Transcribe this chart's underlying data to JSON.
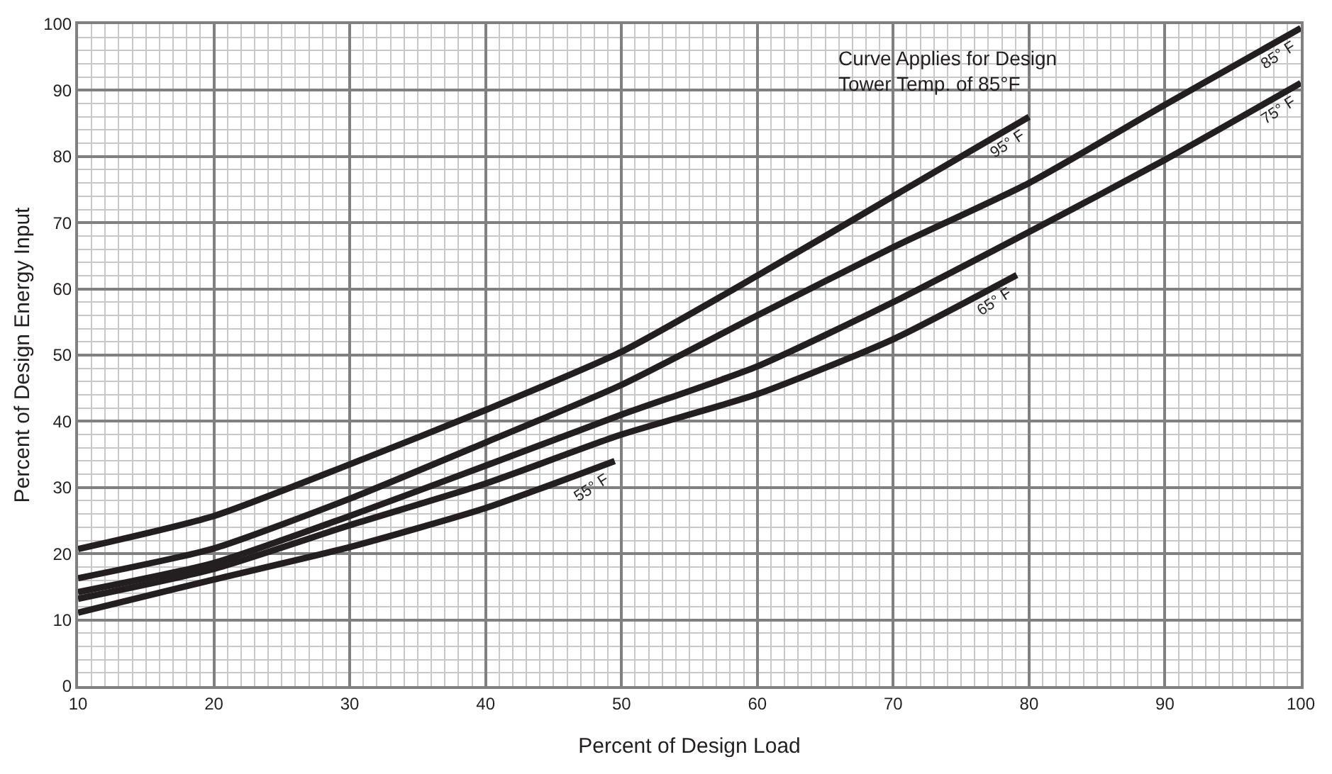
{
  "chart_data": {
    "type": "line",
    "xlabel": "Percent of Design Load",
    "ylabel": "Percent of Design Energy Input",
    "annotations": [
      "Curve Applies for Design\nTower Temp. of 85°F"
    ],
    "xlim": [
      10,
      100
    ],
    "xticks": [
      10,
      20,
      30,
      40,
      50,
      60,
      70,
      80,
      90,
      100
    ],
    "ylim": [
      0,
      100
    ],
    "yticks": [
      0,
      10,
      20,
      30,
      40,
      50,
      60,
      70,
      80,
      90,
      100
    ],
    "grid": true,
    "legend": false,
    "marker": "none",
    "line_style": "solid",
    "series": [
      {
        "name": "95° F",
        "color": "#231f20",
        "x": [
          10,
          20,
          30,
          40,
          50,
          60,
          70,
          80
        ],
        "values": [
          20.7,
          25.7,
          33.5,
          41.7,
          50.5,
          62.0,
          74.0,
          86.0
        ]
      },
      {
        "name": "85° F",
        "color": "#231f20",
        "x": [
          10,
          20,
          30,
          40,
          50,
          60,
          70,
          80,
          90,
          100
        ],
        "values": [
          16.3,
          20.8,
          28.3,
          36.8,
          45.5,
          56.0,
          66.3,
          76.0,
          87.8,
          99.4
        ]
      },
      {
        "name": "75° F",
        "color": "#231f20",
        "x": [
          10,
          20,
          30,
          40,
          50,
          60,
          70,
          80,
          90,
          100
        ],
        "values": [
          14.2,
          18.6,
          25.7,
          33.3,
          41.0,
          48.3,
          58.0,
          68.6,
          79.5,
          91.1
        ]
      },
      {
        "name": "65° F",
        "color": "#231f20",
        "x": [
          10,
          20,
          30,
          40,
          50,
          60,
          70,
          79.1
        ],
        "values": [
          13.2,
          17.7,
          24.3,
          30.6,
          38.0,
          44.1,
          52.4,
          62.1
        ]
      },
      {
        "name": "55° F",
        "color": "#231f20",
        "x": [
          10,
          20,
          30,
          40,
          49.5
        ],
        "values": [
          11.1,
          16.1,
          21.0,
          26.9,
          34.0
        ]
      }
    ]
  }
}
